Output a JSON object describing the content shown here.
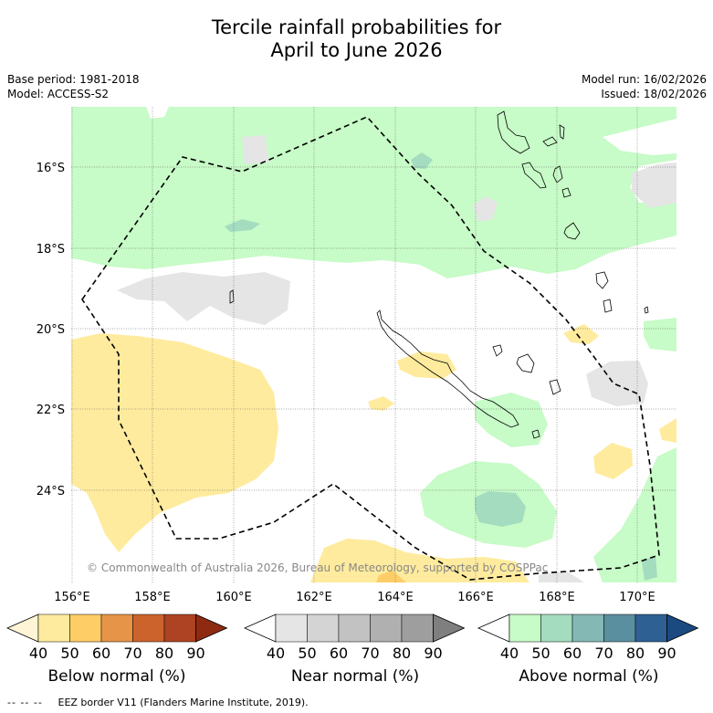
{
  "title": {
    "line1": "Tercile rainfall probabilities for",
    "line2": "April to June 2026"
  },
  "meta": {
    "base_period": "Base period: 1981-2018",
    "model": "Model: ACCESS-S2",
    "model_run": "Model run: 16/02/2026",
    "issued": "Issued: 18/02/2026"
  },
  "map": {
    "lon_labels": [
      "156°E",
      "158°E",
      "160°E",
      "162°E",
      "164°E",
      "166°E",
      "168°E",
      "170°E"
    ],
    "lat_labels": [
      "16°S",
      "18°S",
      "20°S",
      "22°S",
      "24°S"
    ],
    "copyright": "© Commonwealth of Australia 2026, Bureau of Meteorology, supported by COSPPac"
  },
  "colorbars": {
    "below": {
      "label": "Below normal (%)",
      "ticks": [
        "40",
        "50",
        "60",
        "70",
        "80",
        "90"
      ],
      "colors": [
        "#fff5d6",
        "#ffeb9e",
        "#ffcd66",
        "#e59448",
        "#cc632c",
        "#ad4322",
        "#8f2a12"
      ]
    },
    "near": {
      "label": "Near normal (%)",
      "ticks": [
        "40",
        "50",
        "60",
        "70",
        "80",
        "90"
      ],
      "colors": [
        "#ffffff",
        "#e5e5e5",
        "#d4d4d4",
        "#c2c2c2",
        "#b0b0b0",
        "#9e9e9e",
        "#7f7f7f"
      ]
    },
    "above": {
      "label": "Above normal (%)",
      "ticks": [
        "40",
        "50",
        "60",
        "70",
        "80",
        "90"
      ],
      "colors": [
        "#ffffff",
        "#c7fbc7",
        "#a4dcc0",
        "#84b8b4",
        "#5a8fa0",
        "#2e6093",
        "#1a4a80"
      ]
    }
  },
  "legend": {
    "dash": "-- -- --",
    "text": "EEZ border V11 (Flanders Marine Institute, 2019)."
  }
}
